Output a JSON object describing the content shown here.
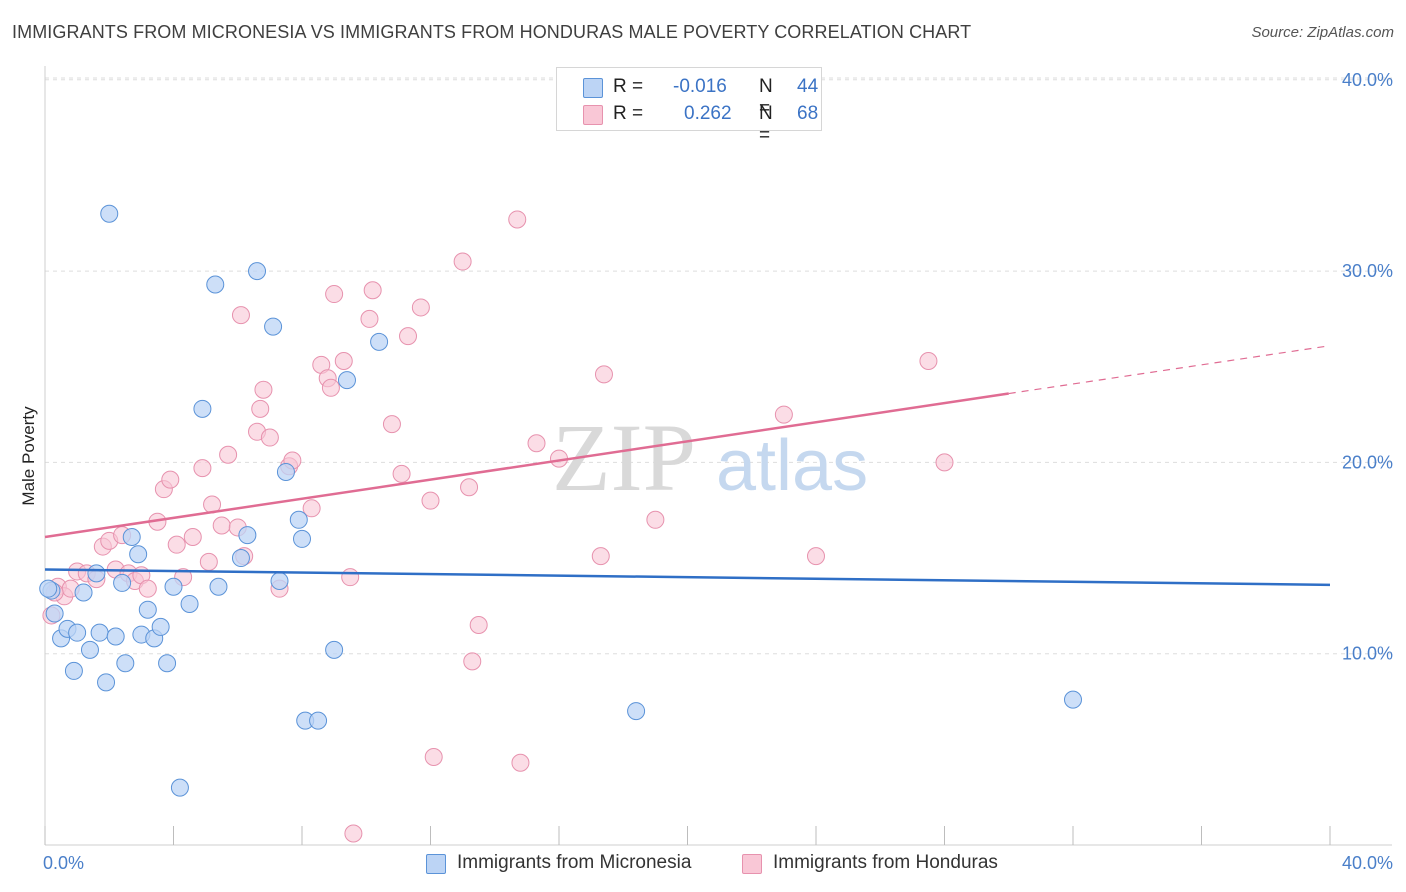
{
  "title": "IMMIGRANTS FROM MICRONESIA VS IMMIGRANTS FROM HONDURAS MALE POVERTY CORRELATION CHART",
  "source": "Source: ZipAtlas.com",
  "watermark": {
    "zip": "ZIP",
    "atlas": "atlas"
  },
  "colors": {
    "micronesia_fill": "#bcd4f5",
    "micronesia_stroke": "#5b93d8",
    "micronesia_line": "#2f6fc6",
    "honduras_fill": "#f9c7d6",
    "honduras_stroke": "#e792ae",
    "honduras_line": "#e06c93",
    "tick_text": "#4a7fc9",
    "grid": "#dddddd"
  },
  "legend": {
    "rows": [
      {
        "r_label": "R =",
        "r_value": "-0.016",
        "n_label": "N =",
        "n_value": "44"
      },
      {
        "r_label": "R =",
        "r_value": "0.262",
        "n_label": "N =",
        "n_value": "68"
      }
    ],
    "bottom": [
      "Immigrants from Micronesia",
      "Immigrants from Honduras"
    ]
  },
  "chart_data": {
    "type": "scatter",
    "ylabel": "Male Poverty",
    "xlabel": "",
    "xlim": [
      0,
      40
    ],
    "ylim": [
      0,
      41
    ],
    "x_ticks": [
      "0.0%",
      "40.0%"
    ],
    "y_ticks": [
      "10.0%",
      "20.0%",
      "30.0%",
      "40.0%"
    ],
    "y_tick_values": [
      10,
      20,
      30,
      40
    ],
    "series": [
      {
        "name": "Immigrants from Micronesia",
        "trend": {
          "x": [
            0,
            40
          ],
          "y": [
            14.4,
            13.6
          ]
        },
        "points": [
          [
            0.2,
            13.3
          ],
          [
            0.3,
            12.1
          ],
          [
            0.5,
            10.8
          ],
          [
            0.7,
            11.3
          ],
          [
            0.9,
            9.1
          ],
          [
            1.0,
            11.1
          ],
          [
            1.2,
            13.2
          ],
          [
            1.4,
            10.2
          ],
          [
            1.6,
            14.2
          ],
          [
            1.7,
            11.1
          ],
          [
            1.9,
            8.5
          ],
          [
            2.0,
            33.0
          ],
          [
            2.2,
            10.9
          ],
          [
            2.4,
            13.7
          ],
          [
            2.5,
            9.5
          ],
          [
            2.7,
            16.1
          ],
          [
            2.9,
            15.2
          ],
          [
            3.0,
            11.0
          ],
          [
            3.2,
            12.3
          ],
          [
            3.4,
            10.8
          ],
          [
            3.6,
            11.4
          ],
          [
            3.8,
            9.5
          ],
          [
            4.0,
            13.5
          ],
          [
            4.2,
            3.0
          ],
          [
            4.5,
            12.6
          ],
          [
            4.9,
            22.8
          ],
          [
            5.3,
            29.3
          ],
          [
            5.4,
            13.5
          ],
          [
            6.1,
            15.0
          ],
          [
            6.3,
            16.2
          ],
          [
            6.6,
            30.0
          ],
          [
            7.1,
            27.1
          ],
          [
            7.3,
            13.8
          ],
          [
            7.5,
            19.5
          ],
          [
            7.9,
            17.0
          ],
          [
            8.0,
            16.0
          ],
          [
            8.1,
            6.5
          ],
          [
            8.5,
            6.5
          ],
          [
            9.0,
            10.2
          ],
          [
            9.4,
            24.3
          ],
          [
            10.4,
            26.3
          ],
          [
            18.4,
            7.0
          ],
          [
            32.0,
            7.6
          ],
          [
            0.1,
            13.4
          ]
        ]
      },
      {
        "name": "Immigrants from Honduras",
        "trend": {
          "x": [
            0,
            30
          ],
          "y": [
            16.1,
            23.6
          ]
        },
        "trend_ext": {
          "x": [
            30,
            40
          ],
          "y": [
            23.6,
            26.1
          ]
        },
        "points": [
          [
            0.2,
            12.0
          ],
          [
            0.4,
            13.5
          ],
          [
            0.6,
            13.0
          ],
          [
            0.8,
            13.4
          ],
          [
            1.0,
            14.3
          ],
          [
            1.3,
            14.2
          ],
          [
            1.6,
            13.9
          ],
          [
            1.8,
            15.6
          ],
          [
            2.0,
            15.9
          ],
          [
            2.2,
            14.4
          ],
          [
            2.4,
            16.2
          ],
          [
            2.6,
            14.2
          ],
          [
            2.8,
            13.8
          ],
          [
            3.0,
            14.1
          ],
          [
            3.2,
            13.4
          ],
          [
            3.5,
            16.9
          ],
          [
            3.7,
            18.6
          ],
          [
            3.9,
            19.1
          ],
          [
            4.1,
            15.7
          ],
          [
            4.3,
            14.0
          ],
          [
            4.6,
            16.1
          ],
          [
            4.9,
            19.7
          ],
          [
            5.1,
            14.8
          ],
          [
            5.2,
            17.8
          ],
          [
            5.5,
            16.7
          ],
          [
            5.7,
            20.4
          ],
          [
            6.0,
            16.6
          ],
          [
            6.2,
            15.1
          ],
          [
            6.1,
            27.7
          ],
          [
            6.6,
            21.6
          ],
          [
            6.7,
            22.8
          ],
          [
            6.8,
            23.8
          ],
          [
            7.0,
            21.3
          ],
          [
            7.3,
            13.4
          ],
          [
            7.6,
            19.8
          ],
          [
            7.7,
            20.1
          ],
          [
            8.3,
            17.6
          ],
          [
            8.6,
            25.1
          ],
          [
            8.8,
            24.4
          ],
          [
            8.9,
            23.9
          ],
          [
            9.0,
            28.8
          ],
          [
            9.3,
            25.3
          ],
          [
            9.5,
            14.0
          ],
          [
            9.6,
            0.6
          ],
          [
            10.1,
            27.5
          ],
          [
            10.2,
            29.0
          ],
          [
            10.8,
            22.0
          ],
          [
            11.1,
            19.4
          ],
          [
            11.3,
            26.6
          ],
          [
            11.7,
            28.1
          ],
          [
            12.0,
            18.0
          ],
          [
            12.1,
            4.6
          ],
          [
            13.0,
            30.5
          ],
          [
            13.2,
            18.7
          ],
          [
            13.5,
            11.5
          ],
          [
            13.3,
            9.6
          ],
          [
            14.7,
            32.7
          ],
          [
            14.8,
            4.3
          ],
          [
            15.3,
            21.0
          ],
          [
            16.0,
            20.2
          ],
          [
            17.3,
            15.1
          ],
          [
            17.4,
            24.6
          ],
          [
            19.0,
            17.0
          ],
          [
            23.0,
            22.5
          ],
          [
            24.0,
            15.1
          ],
          [
            27.5,
            25.3
          ],
          [
            28.0,
            20.0
          ],
          [
            0.3,
            13.2
          ]
        ]
      }
    ]
  }
}
